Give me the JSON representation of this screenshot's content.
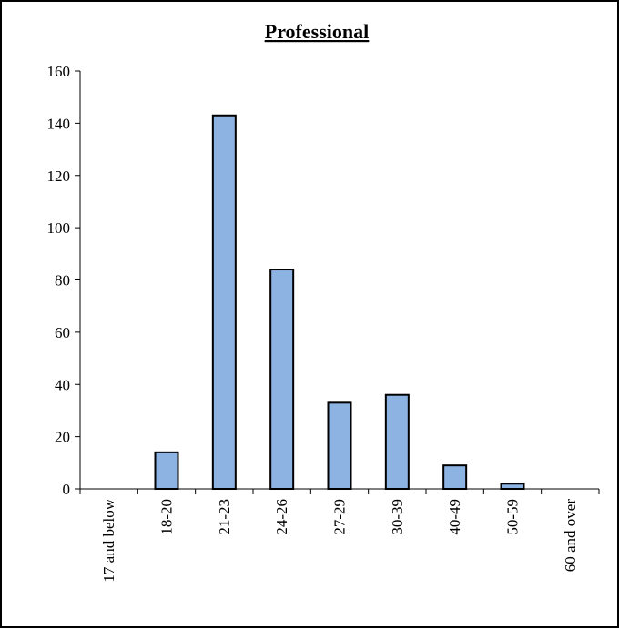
{
  "chart_data": {
    "type": "bar",
    "title": "Professional",
    "categories": [
      "17 and below",
      "18-20",
      "21-23",
      "24-26",
      "27-29",
      "30-39",
      "40-49",
      "50-59",
      "60 and over"
    ],
    "values": [
      0,
      14,
      143,
      84,
      33,
      36,
      9,
      2,
      0
    ],
    "ylim": [
      0,
      160
    ],
    "yticks": [
      "0",
      "20",
      "40",
      "60",
      "80",
      "100",
      "120",
      "140",
      "160"
    ],
    "grid": false,
    "legend": "none",
    "bar_color": "#8db3e2",
    "bar_edge_color": "#000000"
  }
}
